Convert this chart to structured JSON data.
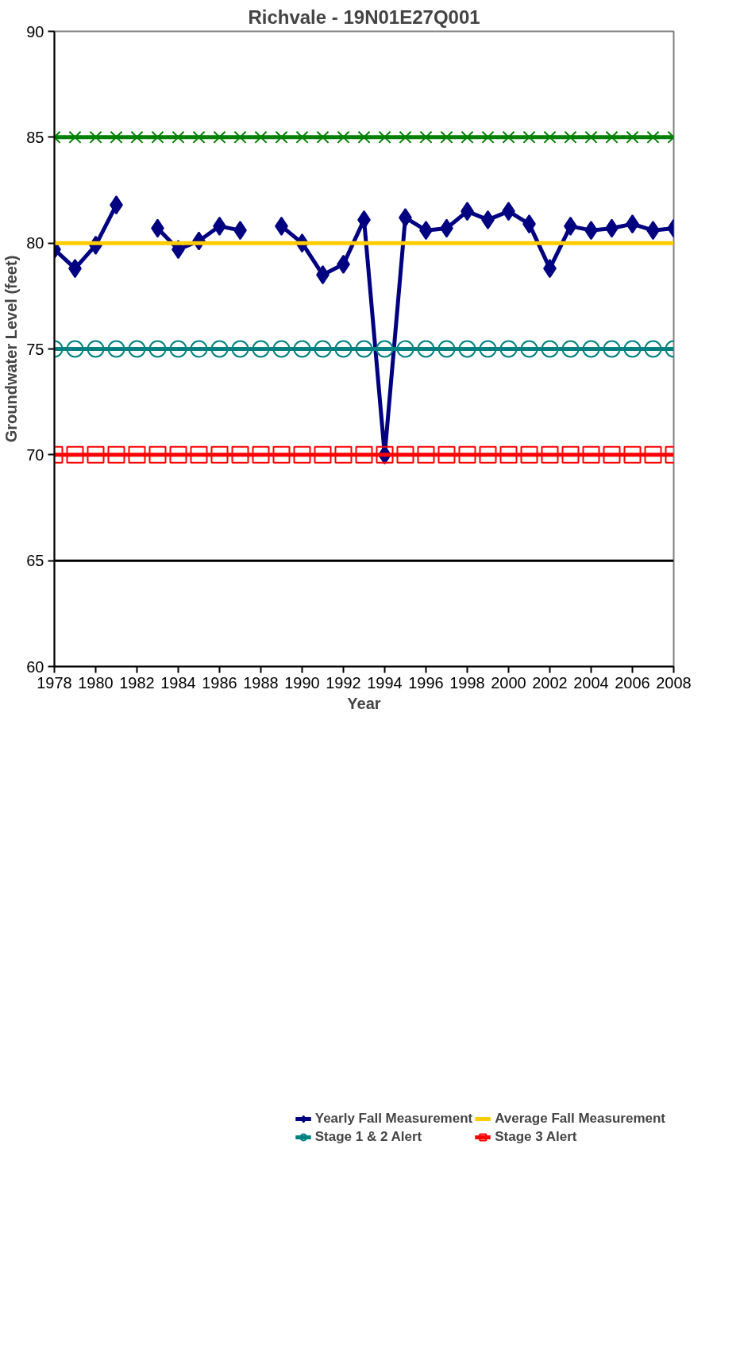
{
  "chart_data": {
    "type": "line",
    "title": "Richvale - 19N01E27Q001",
    "xlabel": "Year",
    "ylabel": "Groundwater Level (feet)",
    "x": [
      1978,
      1979,
      1980,
      1981,
      1982,
      1983,
      1984,
      1985,
      1986,
      1987,
      1988,
      1989,
      1990,
      1991,
      1992,
      1993,
      1994,
      1995,
      1996,
      1997,
      1998,
      1999,
      2000,
      2001,
      2002,
      2003,
      2004,
      2005,
      2006,
      2007,
      2008
    ],
    "series": [
      {
        "name": "Yearly Fall Measurement",
        "color": "#000080",
        "marker": "diamond",
        "values": [
          79.7,
          78.8,
          79.9,
          81.8,
          null,
          80.7,
          79.7,
          80.1,
          80.8,
          80.6,
          null,
          80.8,
          80.0,
          78.5,
          79.0,
          81.1,
          70.0,
          81.2,
          80.6,
          80.7,
          81.5,
          81.1,
          81.5,
          80.9,
          78.8,
          80.8,
          80.6,
          80.7,
          80.9,
          80.6,
          80.7
        ]
      },
      {
        "name": "Stage 1 & 2 Alert",
        "color": "#008080",
        "marker": "circle",
        "values": [
          75,
          75,
          75,
          75,
          75,
          75,
          75,
          75,
          75,
          75,
          75,
          75,
          75,
          75,
          75,
          75,
          75,
          75,
          75,
          75,
          75,
          75,
          75,
          75,
          75,
          75,
          75,
          75,
          75,
          75,
          75
        ]
      },
      {
        "name": "Average Fall Measurement",
        "color": "#ffcc00",
        "marker": "none",
        "values": [
          80,
          80,
          80,
          80,
          80,
          80,
          80,
          80,
          80,
          80,
          80,
          80,
          80,
          80,
          80,
          80,
          80,
          80,
          80,
          80,
          80,
          80,
          80,
          80,
          80,
          80,
          80,
          80,
          80,
          80,
          80
        ]
      },
      {
        "name": "Stage 3 Alert",
        "color": "#ff0000",
        "marker": "square",
        "values": [
          70,
          70,
          70,
          70,
          70,
          70,
          70,
          70,
          70,
          70,
          70,
          70,
          70,
          70,
          70,
          70,
          70,
          70,
          70,
          70,
          70,
          70,
          70,
          70,
          70,
          70,
          70,
          70,
          70,
          70,
          70
        ]
      },
      {
        "color": "#008000",
        "marker": "cross",
        "values": [
          85,
          85,
          85,
          85,
          85,
          85,
          85,
          85,
          85,
          85,
          85,
          85,
          85,
          85,
          85,
          85,
          85,
          85,
          85,
          85,
          85,
          85,
          85,
          85,
          85,
          85,
          85,
          85,
          85,
          85,
          85
        ]
      }
    ],
    "ref_lines": [
      {
        "axis": "y",
        "value": 65,
        "color": "#000000"
      }
    ],
    "xlim": [
      1978,
      2008
    ],
    "xticks": [
      1978,
      1980,
      1982,
      1984,
      1986,
      1988,
      1990,
      1992,
      1994,
      1996,
      1998,
      2000,
      2002,
      2004,
      2006,
      2008
    ],
    "ylim": [
      60,
      90
    ],
    "yticks": [
      60,
      65,
      70,
      75,
      80,
      85,
      90
    ],
    "grid": false,
    "legend": "bottom"
  }
}
